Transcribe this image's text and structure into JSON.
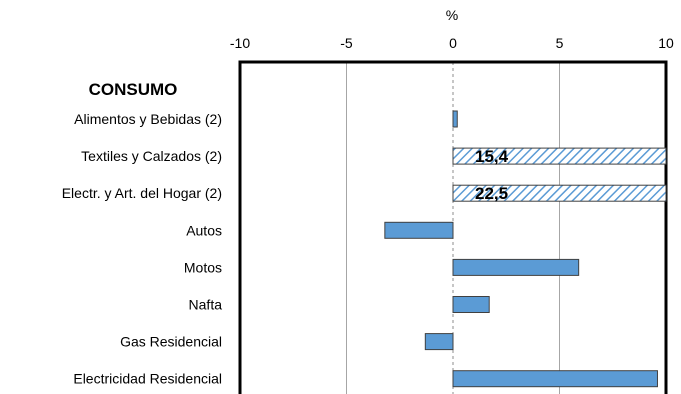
{
  "chart_data": {
    "type": "bar",
    "orientation": "horizontal",
    "unit_label": "%",
    "group_label": "CONSUMO",
    "xlim": [
      -10,
      10
    ],
    "x_ticks": [
      "-10",
      "-5",
      "0",
      "5",
      "10"
    ],
    "x_tick_values": [
      -10,
      -5,
      0,
      5,
      10
    ],
    "grid": "vertical",
    "categories": [
      "Alimentos y Bebidas (2)",
      "Textiles y Calzados (2)",
      "Electr. y Art. del Hogar (2)",
      "Autos",
      "Motos",
      "Nafta",
      "Gas Residencial",
      "Electricidad Residencial"
    ],
    "values": [
      0.2,
      15.4,
      22.5,
      -3.2,
      5.9,
      1.7,
      -1.3,
      9.6
    ],
    "data_labels": [
      "",
      "15,4",
      "22,5",
      "",
      "",
      "",
      "",
      ""
    ],
    "bar_styles": [
      "solid",
      "hatched",
      "hatched",
      "solid",
      "solid",
      "solid",
      "solid",
      "solid"
    ],
    "colors": {
      "bar": "#5b9bd5",
      "hatch": "#5b9bd5",
      "grid": "#a6a6a6",
      "frame": "#000000"
    }
  }
}
